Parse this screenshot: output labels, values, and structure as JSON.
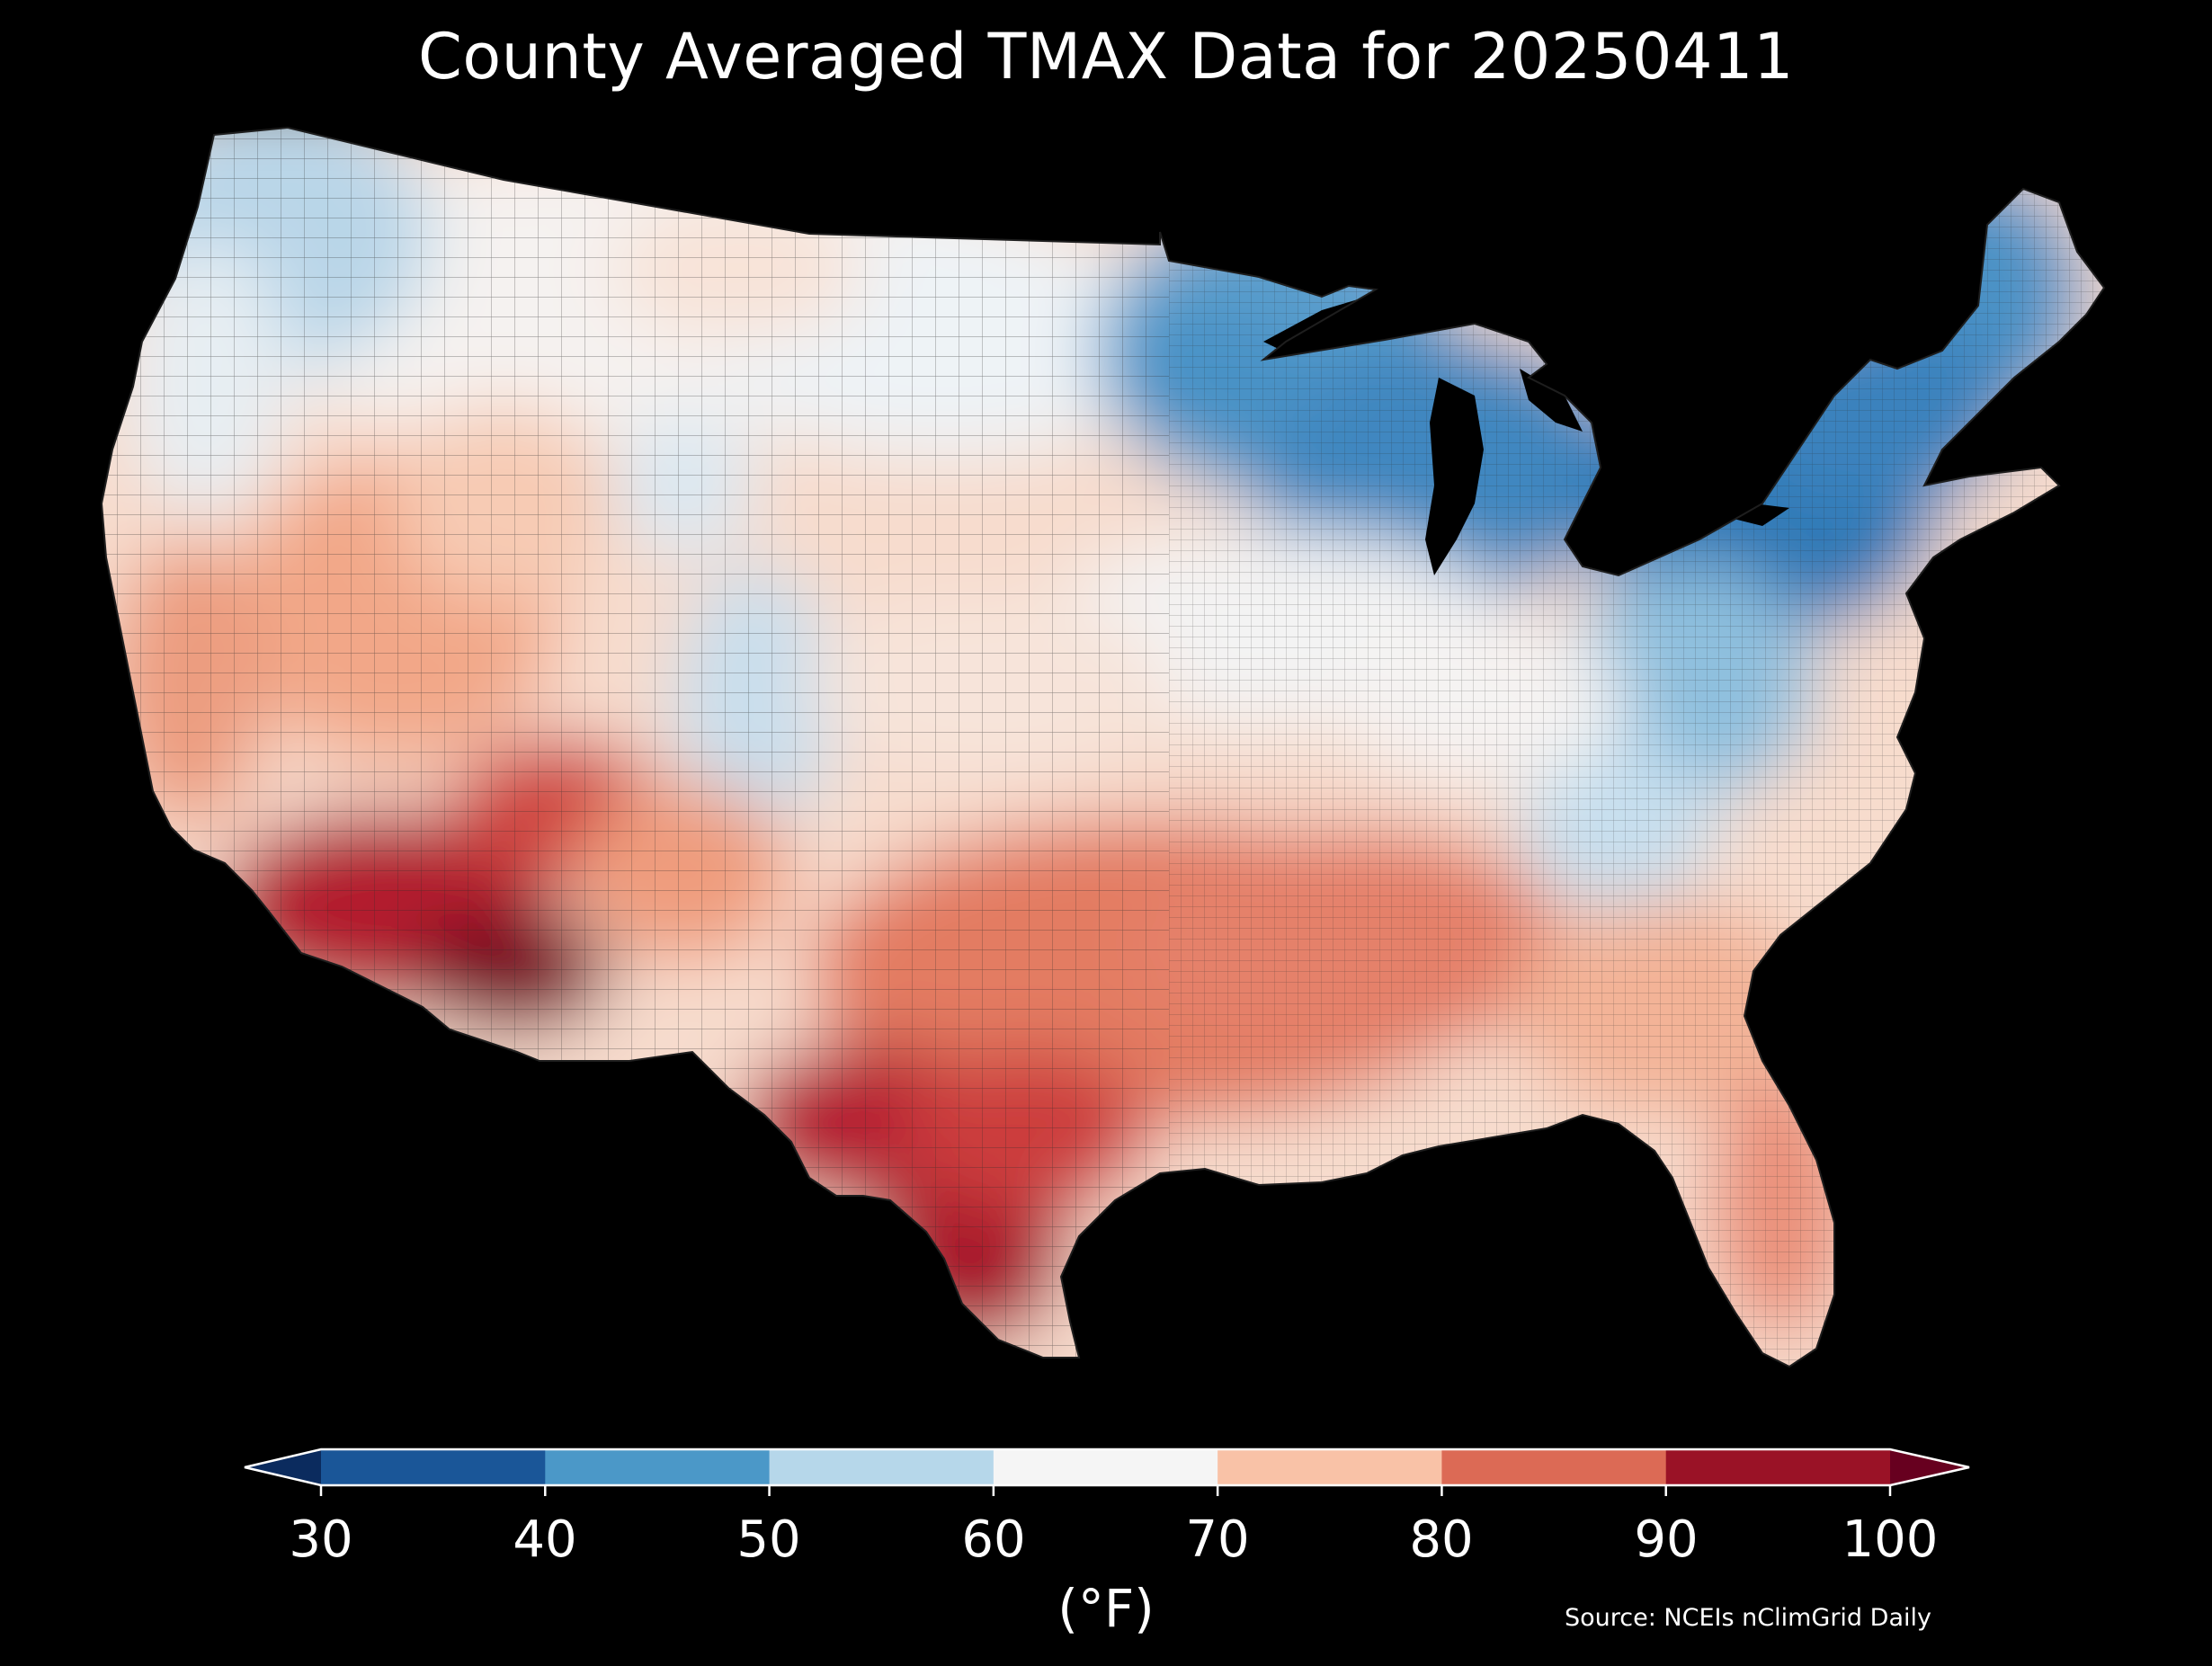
{
  "title": "County Averaged TMAX Data for 20250411",
  "units_label": "(°F)",
  "source": "Source: NCEIs nClimGrid Daily",
  "colorbar": {
    "ticks": [
      "30",
      "40",
      "50",
      "60",
      "70",
      "80",
      "90",
      "100"
    ],
    "bins": [
      {
        "from": 30,
        "to": 40,
        "color": "#1a5698"
      },
      {
        "from": 40,
        "to": 50,
        "color": "#4b98c8"
      },
      {
        "from": 50,
        "to": 60,
        "color": "#b6d7ea"
      },
      {
        "from": 60,
        "to": 70,
        "color": "#f5f5f5"
      },
      {
        "from": 70,
        "to": 80,
        "color": "#f9c2a7"
      },
      {
        "from": 80,
        "to": 90,
        "color": "#dc6a55"
      },
      {
        "from": 90,
        "to": 100,
        "color": "#9a1226"
      }
    ],
    "under_color": "#0b2b5e",
    "over_color": "#67001f",
    "extend": "both"
  },
  "map": {
    "region": "Contiguous United States",
    "background": "#000000",
    "border_color": "#2b2b2b",
    "regional_values_F": [
      {
        "region": "Pacific Northwest coast",
        "value": 58
      },
      {
        "region": "Northern Rockies",
        "value": 64
      },
      {
        "region": "Northern Plains",
        "value": 66
      },
      {
        "region": "Upper Midwest / Great Lakes",
        "value": 44
      },
      {
        "region": "Northeast / New England",
        "value": 42
      },
      {
        "region": "Interior Northeast",
        "value": 37
      },
      {
        "region": "Central Appalachians",
        "value": 55
      },
      {
        "region": "Mid-Atlantic coast",
        "value": 62
      },
      {
        "region": "Central California",
        "value": 76
      },
      {
        "region": "Great Basin",
        "value": 75
      },
      {
        "region": "Colorado Rockies",
        "value": 57
      },
      {
        "region": "Central Plains",
        "value": 71
      },
      {
        "region": "Southern Plains",
        "value": 82
      },
      {
        "region": "Mid-South",
        "value": 82
      },
      {
        "region": "Southeast",
        "value": 78
      },
      {
        "region": "Florida",
        "value": 80
      },
      {
        "region": "Southern California",
        "value": 88
      },
      {
        "region": "Desert Southwest",
        "value": 96
      },
      {
        "region": "South Texas",
        "value": 94
      }
    ]
  }
}
